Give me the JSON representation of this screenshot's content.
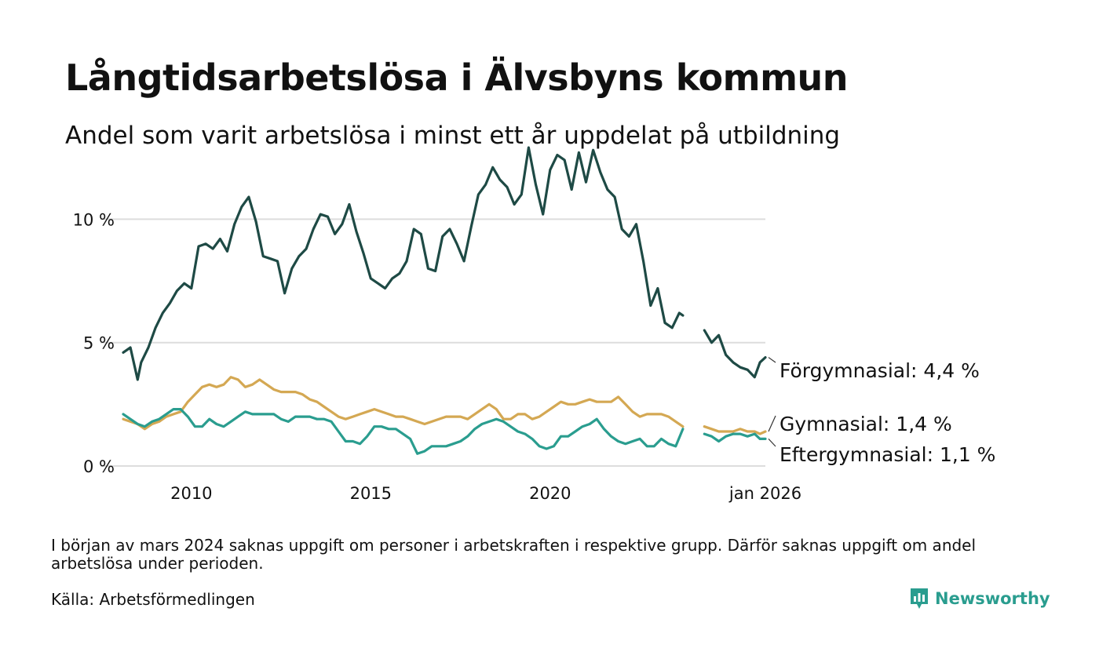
{
  "header": {
    "title": "Långtidsarbetslösa i Älvsbyns kommun",
    "subtitle": "Andel som varit arbetslösa i minst ett år uppdelat på utbildning"
  },
  "footer": {
    "note": "I början av mars 2024 saknas uppgift om personer i arbetskraften i respektive grupp. Därför saknas uppgift om andel arbetslösa under perioden.",
    "source": "Källa: Arbetsförmedlingen",
    "brand": "Newsworthy"
  },
  "colors": {
    "forgymnasial": "#1e4a45",
    "gymnasial": "#d4a853",
    "eftergymnasial": "#2a9d8f",
    "grid": "#dddddd",
    "brand": "#2a9d8f"
  },
  "chart_data": {
    "type": "line",
    "title": "Långtidsarbetslösa i Älvsbyns kommun",
    "subtitle": "Andel som varit arbetslösa i minst ett år uppdelat på utbildning",
    "xlabel": "",
    "ylabel": "",
    "xlim": [
      2008.1,
      2026.0
    ],
    "ylim": [
      0,
      13
    ],
    "y_ticks": [
      {
        "value": 0,
        "label": "0 %"
      },
      {
        "value": 5,
        "label": "5 %"
      },
      {
        "value": 10,
        "label": "10 %"
      }
    ],
    "x_ticks": [
      {
        "value": 2010,
        "label": "2010"
      },
      {
        "value": 2015,
        "label": "2015"
      },
      {
        "value": 2020,
        "label": "2020"
      },
      {
        "value": 2026.0,
        "label": "jan 2026"
      }
    ],
    "grid": "horizontal",
    "gap": [
      2023.7,
      2024.3
    ],
    "series": [
      {
        "name": "Förgymnasial",
        "color": "#1e4a45",
        "end_label": "Förgymnasial: 4,4 %",
        "x": [
          2008.1,
          2008.3,
          2008.5,
          2008.6,
          2008.8,
          2009.0,
          2009.2,
          2009.4,
          2009.6,
          2009.8,
          2010.0,
          2010.2,
          2010.4,
          2010.6,
          2010.8,
          2011.0,
          2011.2,
          2011.4,
          2011.6,
          2011.8,
          2012.0,
          2012.2,
          2012.4,
          2012.6,
          2012.8,
          2013.0,
          2013.2,
          2013.4,
          2013.6,
          2013.8,
          2014.0,
          2014.2,
          2014.4,
          2014.6,
          2014.8,
          2015.0,
          2015.2,
          2015.4,
          2015.6,
          2015.8,
          2016.0,
          2016.2,
          2016.4,
          2016.6,
          2016.8,
          2017.0,
          2017.2,
          2017.4,
          2017.6,
          2017.8,
          2018.0,
          2018.2,
          2018.4,
          2018.6,
          2018.8,
          2019.0,
          2019.2,
          2019.4,
          2019.6,
          2019.8,
          2020.0,
          2020.2,
          2020.4,
          2020.6,
          2020.8,
          2021.0,
          2021.2,
          2021.4,
          2021.6,
          2021.8,
          2022.0,
          2022.2,
          2022.4,
          2022.6,
          2022.8,
          2023.0,
          2023.2,
          2023.4,
          2023.6,
          2023.7,
          2024.3,
          2024.5,
          2024.7,
          2024.9,
          2025.1,
          2025.3,
          2025.5,
          2025.7,
          2025.85,
          2026.0
        ],
        "values": [
          4.6,
          4.8,
          3.5,
          4.2,
          4.8,
          5.6,
          6.2,
          6.6,
          7.1,
          7.4,
          7.2,
          8.9,
          9.0,
          8.8,
          9.2,
          8.7,
          9.8,
          10.5,
          10.9,
          9.9,
          8.5,
          8.4,
          8.3,
          7.0,
          8.0,
          8.5,
          8.8,
          9.6,
          10.2,
          10.1,
          9.4,
          9.8,
          10.6,
          9.5,
          8.6,
          7.6,
          7.4,
          7.2,
          7.6,
          7.8,
          8.3,
          9.6,
          9.4,
          8.0,
          7.9,
          9.3,
          9.6,
          9.0,
          8.3,
          9.7,
          11.0,
          11.4,
          12.1,
          11.6,
          11.3,
          10.6,
          11.0,
          12.9,
          11.4,
          10.2,
          12.0,
          12.6,
          12.4,
          11.2,
          12.7,
          11.5,
          12.8,
          11.9,
          11.2,
          10.9,
          9.6,
          9.3,
          9.8,
          8.3,
          6.5,
          7.2,
          5.8,
          5.6,
          6.2,
          6.1,
          5.5,
          5.0,
          5.3,
          4.5,
          4.2,
          4.0,
          3.9,
          3.6,
          4.2,
          4.4
        ]
      },
      {
        "name": "Gymnasial",
        "color": "#d4a853",
        "end_label": "Gymnasial: 1,4 %",
        "x": [
          2008.1,
          2008.3,
          2008.5,
          2008.7,
          2008.9,
          2009.1,
          2009.3,
          2009.5,
          2009.7,
          2009.9,
          2010.1,
          2010.3,
          2010.5,
          2010.7,
          2010.9,
          2011.1,
          2011.3,
          2011.5,
          2011.7,
          2011.9,
          2012.1,
          2012.3,
          2012.5,
          2012.7,
          2012.9,
          2013.1,
          2013.3,
          2013.5,
          2013.7,
          2013.9,
          2014.1,
          2014.3,
          2014.5,
          2014.7,
          2014.9,
          2015.1,
          2015.3,
          2015.5,
          2015.7,
          2015.9,
          2016.1,
          2016.3,
          2016.5,
          2016.7,
          2016.9,
          2017.1,
          2017.3,
          2017.5,
          2017.7,
          2017.9,
          2018.1,
          2018.3,
          2018.5,
          2018.7,
          2018.9,
          2019.1,
          2019.3,
          2019.5,
          2019.7,
          2019.9,
          2020.1,
          2020.3,
          2020.5,
          2020.7,
          2020.9,
          2021.1,
          2021.3,
          2021.5,
          2021.7,
          2021.9,
          2022.1,
          2022.3,
          2022.5,
          2022.7,
          2022.9,
          2023.1,
          2023.3,
          2023.5,
          2023.7,
          2024.3,
          2024.5,
          2024.7,
          2024.9,
          2025.1,
          2025.3,
          2025.5,
          2025.7,
          2025.85,
          2026.0
        ],
        "values": [
          1.9,
          1.8,
          1.7,
          1.5,
          1.7,
          1.8,
          2.0,
          2.1,
          2.2,
          2.6,
          2.9,
          3.2,
          3.3,
          3.2,
          3.3,
          3.6,
          3.5,
          3.2,
          3.3,
          3.5,
          3.3,
          3.1,
          3.0,
          3.0,
          3.0,
          2.9,
          2.7,
          2.6,
          2.4,
          2.2,
          2.0,
          1.9,
          2.0,
          2.1,
          2.2,
          2.3,
          2.2,
          2.1,
          2.0,
          2.0,
          1.9,
          1.8,
          1.7,
          1.8,
          1.9,
          2.0,
          2.0,
          2.0,
          1.9,
          2.1,
          2.3,
          2.5,
          2.3,
          1.9,
          1.9,
          2.1,
          2.1,
          1.9,
          2.0,
          2.2,
          2.4,
          2.6,
          2.5,
          2.5,
          2.6,
          2.7,
          2.6,
          2.6,
          2.6,
          2.8,
          2.5,
          2.2,
          2.0,
          2.1,
          2.1,
          2.1,
          2.0,
          1.8,
          1.6,
          1.6,
          1.5,
          1.4,
          1.4,
          1.4,
          1.5,
          1.4,
          1.4,
          1.3,
          1.4
        ]
      },
      {
        "name": "Eftergymnasial",
        "color": "#2a9d8f",
        "end_label": "Eftergymnasial: 1,1 %",
        "x": [
          2008.1,
          2008.3,
          2008.5,
          2008.7,
          2008.9,
          2009.1,
          2009.3,
          2009.5,
          2009.7,
          2009.9,
          2010.1,
          2010.3,
          2010.5,
          2010.7,
          2010.9,
          2011.1,
          2011.3,
          2011.5,
          2011.7,
          2011.9,
          2012.1,
          2012.3,
          2012.5,
          2012.7,
          2012.9,
          2013.1,
          2013.3,
          2013.5,
          2013.7,
          2013.9,
          2014.1,
          2014.3,
          2014.5,
          2014.7,
          2014.9,
          2015.1,
          2015.3,
          2015.5,
          2015.7,
          2015.9,
          2016.1,
          2016.3,
          2016.5,
          2016.7,
          2016.9,
          2017.1,
          2017.3,
          2017.5,
          2017.7,
          2017.9,
          2018.1,
          2018.3,
          2018.5,
          2018.7,
          2018.9,
          2019.1,
          2019.3,
          2019.5,
          2019.7,
          2019.9,
          2020.1,
          2020.3,
          2020.5,
          2020.7,
          2020.9,
          2021.1,
          2021.3,
          2021.5,
          2021.7,
          2021.9,
          2022.1,
          2022.3,
          2022.5,
          2022.7,
          2022.9,
          2023.1,
          2023.3,
          2023.5,
          2023.7,
          2024.3,
          2024.5,
          2024.7,
          2024.9,
          2025.1,
          2025.3,
          2025.5,
          2025.7,
          2025.85,
          2026.0
        ],
        "values": [
          2.1,
          1.9,
          1.7,
          1.6,
          1.8,
          1.9,
          2.1,
          2.3,
          2.3,
          2.0,
          1.6,
          1.6,
          1.9,
          1.7,
          1.6,
          1.8,
          2.0,
          2.2,
          2.1,
          2.1,
          2.1,
          2.1,
          1.9,
          1.8,
          2.0,
          2.0,
          2.0,
          1.9,
          1.9,
          1.8,
          1.4,
          1.0,
          1.0,
          0.9,
          1.2,
          1.6,
          1.6,
          1.5,
          1.5,
          1.3,
          1.1,
          0.5,
          0.6,
          0.8,
          0.8,
          0.8,
          0.9,
          1.0,
          1.2,
          1.5,
          1.7,
          1.8,
          1.9,
          1.8,
          1.6,
          1.4,
          1.3,
          1.1,
          0.8,
          0.7,
          0.8,
          1.2,
          1.2,
          1.4,
          1.6,
          1.7,
          1.9,
          1.5,
          1.2,
          1.0,
          0.9,
          1.0,
          1.1,
          0.8,
          0.8,
          1.1,
          0.9,
          0.8,
          1.5,
          1.3,
          1.2,
          1.0,
          1.2,
          1.3,
          1.3,
          1.2,
          1.3,
          1.1,
          1.1
        ]
      }
    ]
  }
}
